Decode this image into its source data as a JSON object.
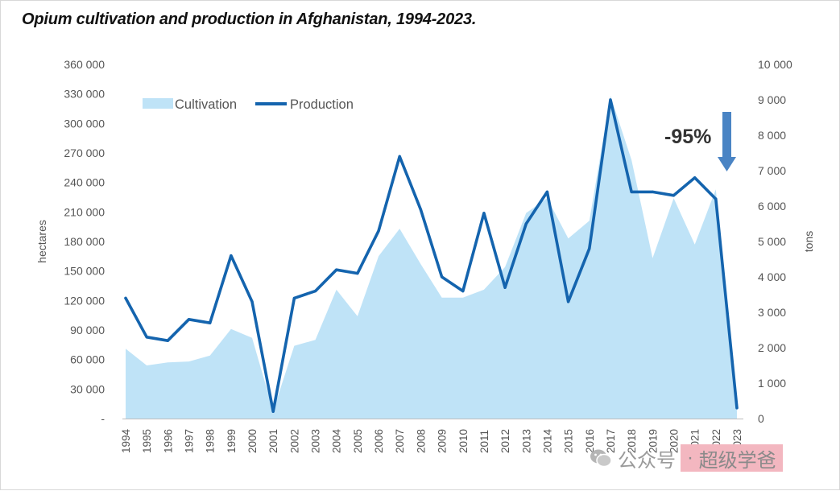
{
  "title": "Opium cultivation and production in Afghanistan, 1994-2023.",
  "annotation": {
    "text": "-95%"
  },
  "watermark": {
    "label": "公众号",
    "separator": "·",
    "name": "超级学爸"
  },
  "colors": {
    "area": "#bfe3f7",
    "line": "#1464ae",
    "arrow": "#4a84c4",
    "axis_text": "#555555"
  },
  "chart_data": {
    "type": "line",
    "title": "Opium cultivation and production in Afghanistan, 1994-2023.",
    "categories": [
      "1994",
      "1995",
      "1996",
      "1997",
      "1998",
      "1999",
      "2000",
      "2001",
      "2002",
      "2003",
      "2004",
      "2005",
      "2006",
      "2007",
      "2008",
      "2009",
      "2010",
      "2011",
      "2012",
      "2013",
      "2014",
      "2015",
      "2016",
      "2017",
      "2018",
      "2019",
      "2020",
      "2021",
      "2022",
      "2023"
    ],
    "series": [
      {
        "name": "Cultivation",
        "type": "area",
        "axis": "left",
        "values": [
          71000,
          54000,
          57000,
          58000,
          64000,
          91000,
          82000,
          8000,
          74000,
          80000,
          131000,
          104000,
          165000,
          193000,
          157000,
          123000,
          123000,
          131000,
          154000,
          209000,
          224000,
          183000,
          201000,
          328000,
          263000,
          163000,
          224000,
          177000,
          233000,
          10800
        ]
      },
      {
        "name": "Production",
        "type": "line",
        "axis": "right",
        "values": [
          3400,
          2300,
          2200,
          2800,
          2700,
          4600,
          3300,
          200,
          3400,
          3600,
          4200,
          4100,
          5300,
          7400,
          5900,
          4000,
          3600,
          5800,
          3700,
          5500,
          6400,
          3300,
          4800,
          9000,
          6400,
          6400,
          6300,
          6800,
          6200,
          300
        ]
      }
    ],
    "y_left": {
      "label": "hectares",
      "range": [
        0,
        360000
      ],
      "ticks": [
        "-",
        "30 000",
        "60 000",
        "90 000",
        "120 000",
        "150 000",
        "180 000",
        "210 000",
        "240 000",
        "270 000",
        "300 000",
        "330 000",
        "360 000"
      ]
    },
    "y_right": {
      "label": "tons",
      "range": [
        0,
        10000
      ],
      "ticks": [
        "0",
        "1 000",
        "2 000",
        "3 000",
        "4 000",
        "5 000",
        "6 000",
        "7 000",
        "8 000",
        "9 000",
        "10 000"
      ]
    },
    "grid": false,
    "legend": "top-left"
  }
}
